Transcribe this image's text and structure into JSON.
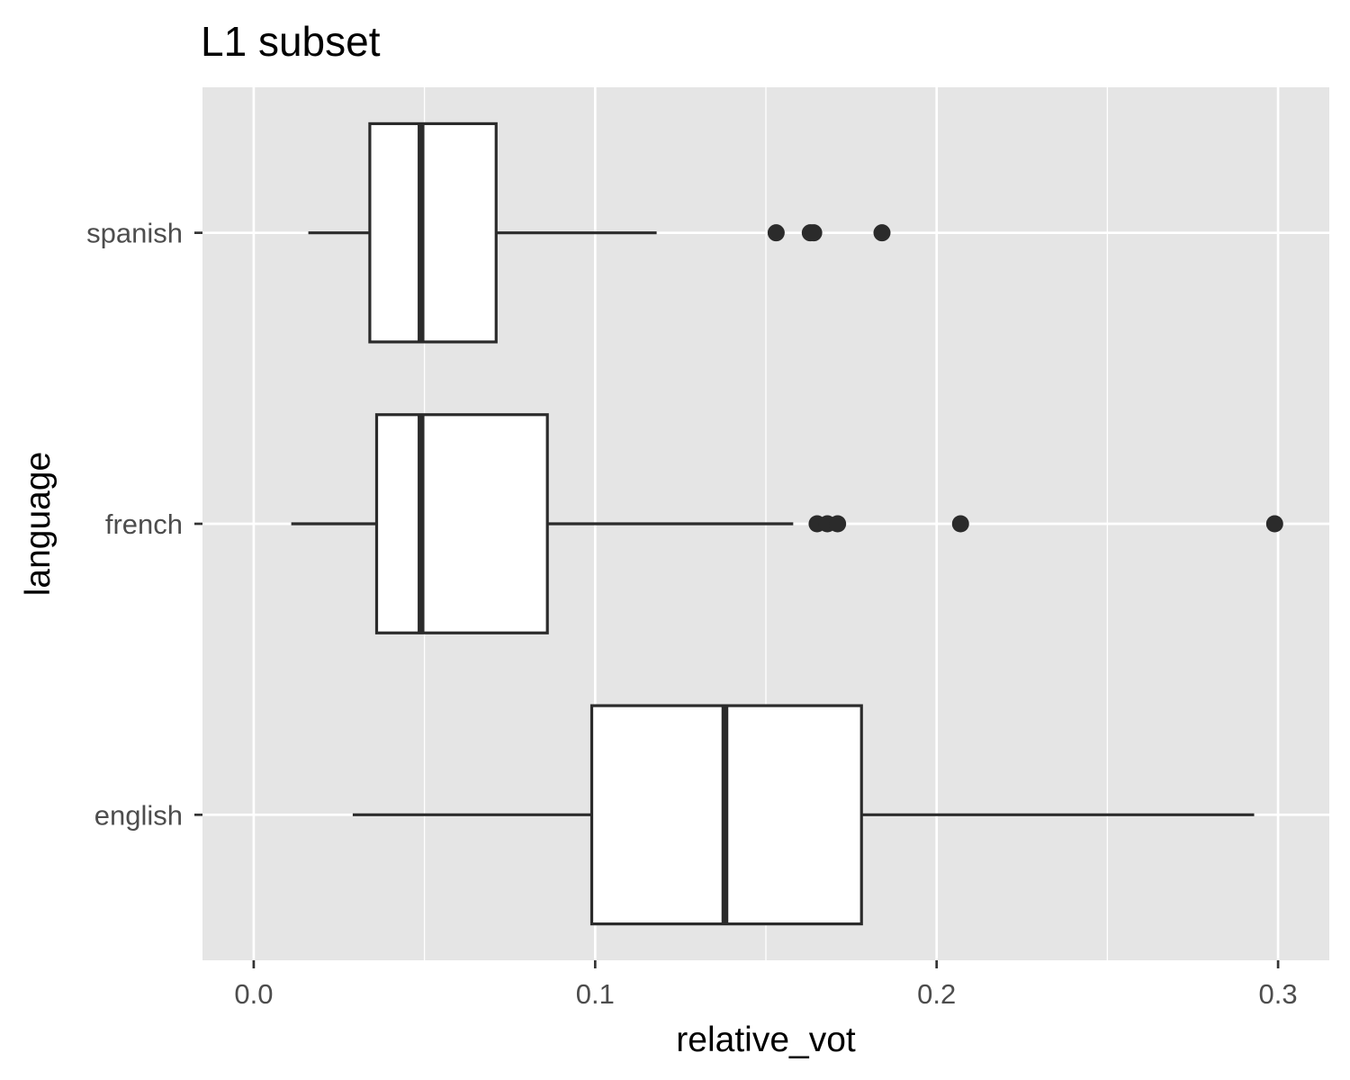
{
  "chart_data": {
    "type": "boxplot",
    "orientation": "horizontal",
    "title": "L1 subset",
    "xlabel": "relative_vot",
    "ylabel": "language",
    "xlim": [
      -0.015,
      0.315
    ],
    "x_ticks": [
      0.0,
      0.1,
      0.2,
      0.3
    ],
    "x_tick_labels": [
      "0.0",
      "0.1",
      "0.2",
      "0.3"
    ],
    "categories": [
      "spanish",
      "french",
      "english"
    ],
    "boxes": [
      {
        "category": "spanish",
        "whisker_low": 0.016,
        "q1": 0.034,
        "median": 0.049,
        "q3": 0.071,
        "whisker_high": 0.118,
        "outliers": [
          0.153,
          0.163,
          0.164,
          0.184
        ]
      },
      {
        "category": "french",
        "whisker_low": 0.011,
        "q1": 0.036,
        "median": 0.049,
        "q3": 0.086,
        "whisker_high": 0.158,
        "outliers": [
          0.165,
          0.168,
          0.171,
          0.207,
          0.299
        ]
      },
      {
        "category": "english",
        "whisker_low": 0.029,
        "q1": 0.099,
        "median": 0.138,
        "q3": 0.178,
        "whisker_high": 0.293,
        "outliers": []
      }
    ],
    "grid": true,
    "legend": "none",
    "colors": {
      "panel": "#e5e5e5",
      "grid": "#ffffff",
      "box_fill": "#ffffff",
      "stroke": "#2b2b2b",
      "tick_text": "#4d4d4d"
    }
  }
}
